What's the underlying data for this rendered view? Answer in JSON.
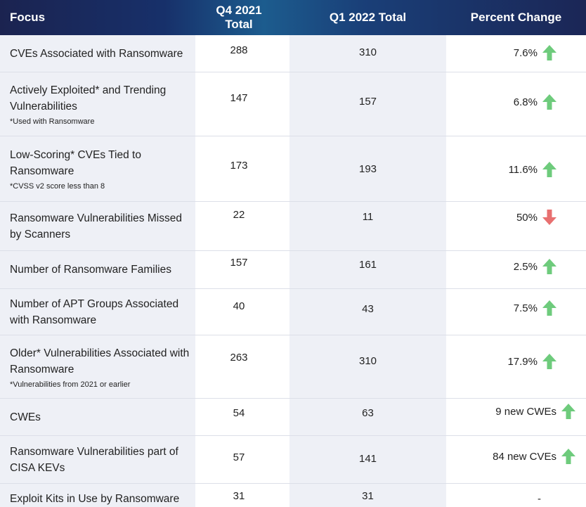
{
  "header": {
    "focus": "Focus",
    "q4_line1": "Q4 2021",
    "q4_line2": "Total",
    "q1": "Q1 2022 Total",
    "percent_change": "Percent Change"
  },
  "colors": {
    "header_bg": "#1b2350",
    "up_arrow": "#6ecb7c",
    "down_arrow": "#e87070"
  },
  "rows": [
    {
      "label": "CVEs Associated with Ransomware",
      "note": "",
      "q4": "288",
      "q1": "310",
      "change": "7.6%",
      "direction": "up"
    },
    {
      "label": "Actively Exploited* and Trending Vulnerabilities",
      "note": "*Used with Ransomware",
      "q4": "147",
      "q1": "157",
      "change": "6.8%",
      "direction": "up"
    },
    {
      "label": "Low-Scoring* CVEs Tied to Ransomware",
      "note": "*CVSS v2 score less than 8",
      "q4": "173",
      "q1": "193",
      "change": "11.6%",
      "direction": "up"
    },
    {
      "label": "Ransomware Vulnerabilities Missed by Scanners",
      "note": "",
      "q4": "22",
      "q1": "11",
      "change": "50%",
      "direction": "down"
    },
    {
      "label": "Number of Ransomware Families",
      "note": "",
      "q4": "157",
      "q1": "161",
      "change": "2.5%",
      "direction": "up"
    },
    {
      "label": "Number of APT Groups Associated with Ransomware",
      "note": "",
      "q4": "40",
      "q1": "43",
      "change": "7.5%",
      "direction": "up"
    },
    {
      "label": "Older* Vulnerabilities Associated with Ransomware",
      "note": "*Vulnerabilities from 2021 or earlier",
      "q4": "263",
      "q1": "310",
      "change": "17.9%",
      "direction": "up"
    },
    {
      "label": "CWEs",
      "note": "",
      "q4": "54",
      "q1": "63",
      "change": "9 new CWEs",
      "direction": "up"
    },
    {
      "label": "Ransomware Vulnerabilities part of CISA KEVs",
      "note": "",
      "q4": "57",
      "q1": "141",
      "change": "84 new CVEs",
      "direction": "up"
    },
    {
      "label": "Exploit Kits in Use by Ransomware",
      "note": "",
      "q4": "31",
      "q1": "31",
      "change": "-",
      "direction": "none"
    }
  ]
}
